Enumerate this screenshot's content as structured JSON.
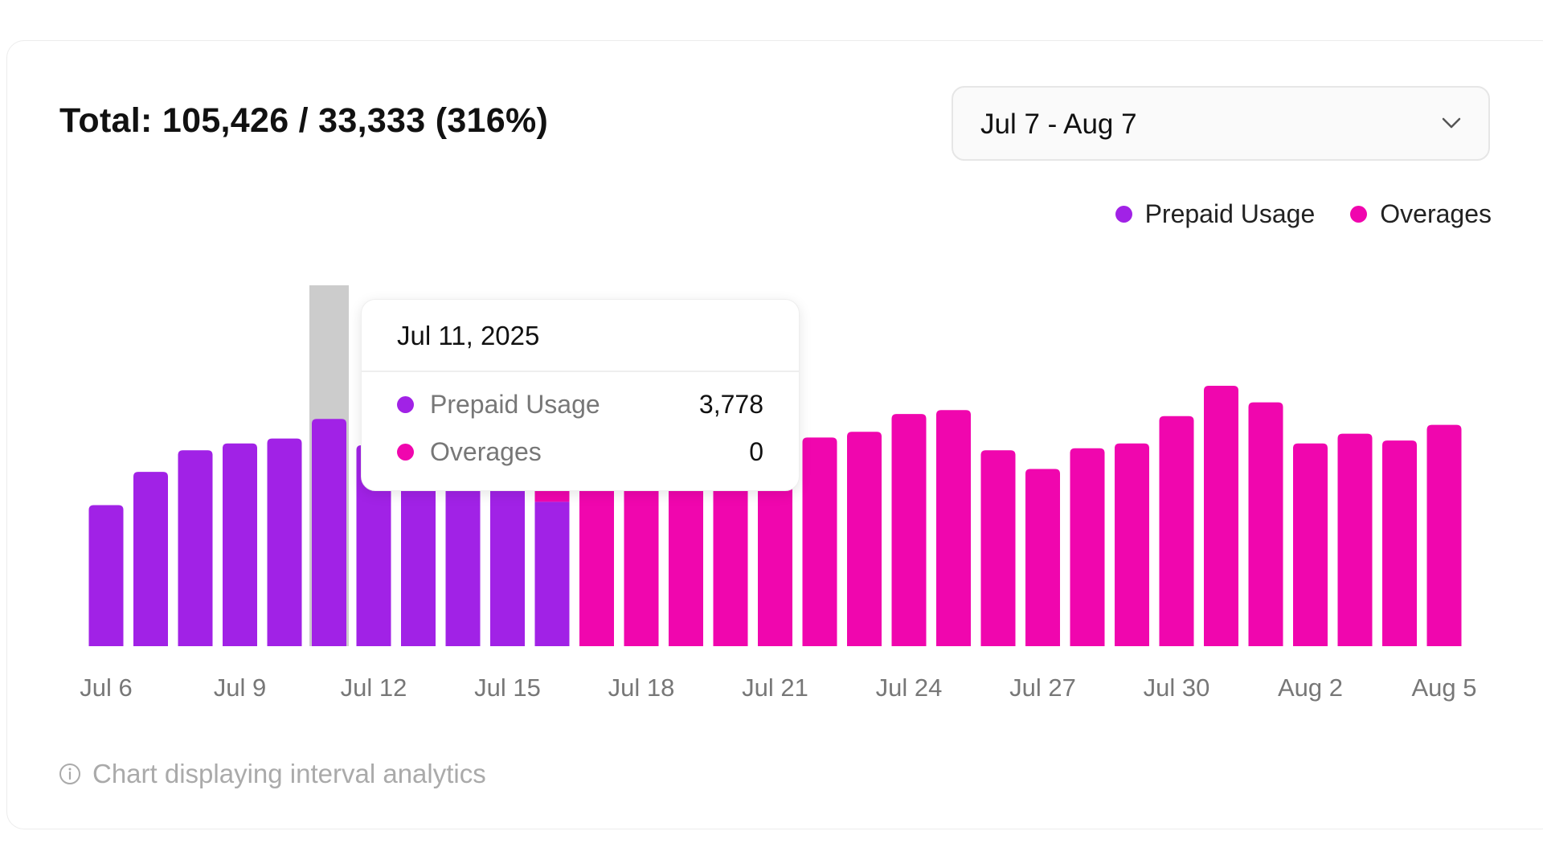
{
  "header": {
    "title": "Total: 105,426 / 33,333 (316%)"
  },
  "date_range": {
    "selected": "Jul 7 - Aug 7",
    "icon": "chevron-down-icon"
  },
  "colors": {
    "prepaid": "#A122E6",
    "overages": "#F006AE",
    "highlight": "#CCCCCC"
  },
  "tooltip": {
    "date": "Jul 11, 2025",
    "rows": [
      {
        "label": "Prepaid Usage",
        "value": "3,778"
      },
      {
        "label": "Overages",
        "value": "0"
      }
    ]
  },
  "footer": {
    "text": "Chart displaying interval analytics",
    "icon": "info-icon"
  },
  "chart_data": {
    "type": "bar",
    "stacked": true,
    "legend": [
      "Prepaid Usage",
      "Overages"
    ],
    "legend_placement": "top-right",
    "grid": false,
    "ylim": [
      0,
      6000
    ],
    "highlighted_category": "Jul 11",
    "categories": [
      "Jul 6",
      "Jul 7",
      "Jul 8",
      "Jul 9",
      "Jul 10",
      "Jul 11",
      "Jul 12",
      "Jul 13",
      "Jul 14",
      "Jul 15",
      "Jul 16",
      "Jul 17",
      "Jul 18",
      "Jul 19",
      "Jul 20",
      "Jul 21",
      "Jul 22",
      "Jul 23",
      "Jul 24",
      "Jul 25",
      "Jul 26",
      "Jul 27",
      "Jul 28",
      "Jul 29",
      "Jul 30",
      "Jul 31",
      "Aug 1",
      "Aug 2",
      "Aug 3",
      "Aug 4",
      "Aug 5"
    ],
    "tick_labels": [
      "Jul 6",
      "Jul 9",
      "Jul 12",
      "Jul 15",
      "Jul 18",
      "Jul 21",
      "Jul 24",
      "Jul 27",
      "Jul 30",
      "Aug 2",
      "Aug 5"
    ],
    "series": [
      {
        "name": "Prepaid Usage",
        "values": [
          2345,
          2898,
          3257,
          3370,
          3452,
          3778,
          3340,
          3300,
          3300,
          3300,
          2400,
          0,
          0,
          0,
          0,
          0,
          0,
          0,
          0,
          0,
          0,
          0,
          0,
          0,
          0,
          0,
          0,
          0,
          0,
          0,
          0
        ]
      },
      {
        "name": "Overages",
        "values": [
          0,
          0,
          0,
          0,
          0,
          0,
          0,
          0,
          0,
          0,
          1000,
          3400,
          3400,
          3400,
          3400,
          3400,
          3470,
          3565,
          3860,
          3925,
          3257,
          2947,
          3290,
          3370,
          3826,
          4330,
          4054,
          3370,
          3533,
          3420,
          3680
        ]
      }
    ]
  }
}
